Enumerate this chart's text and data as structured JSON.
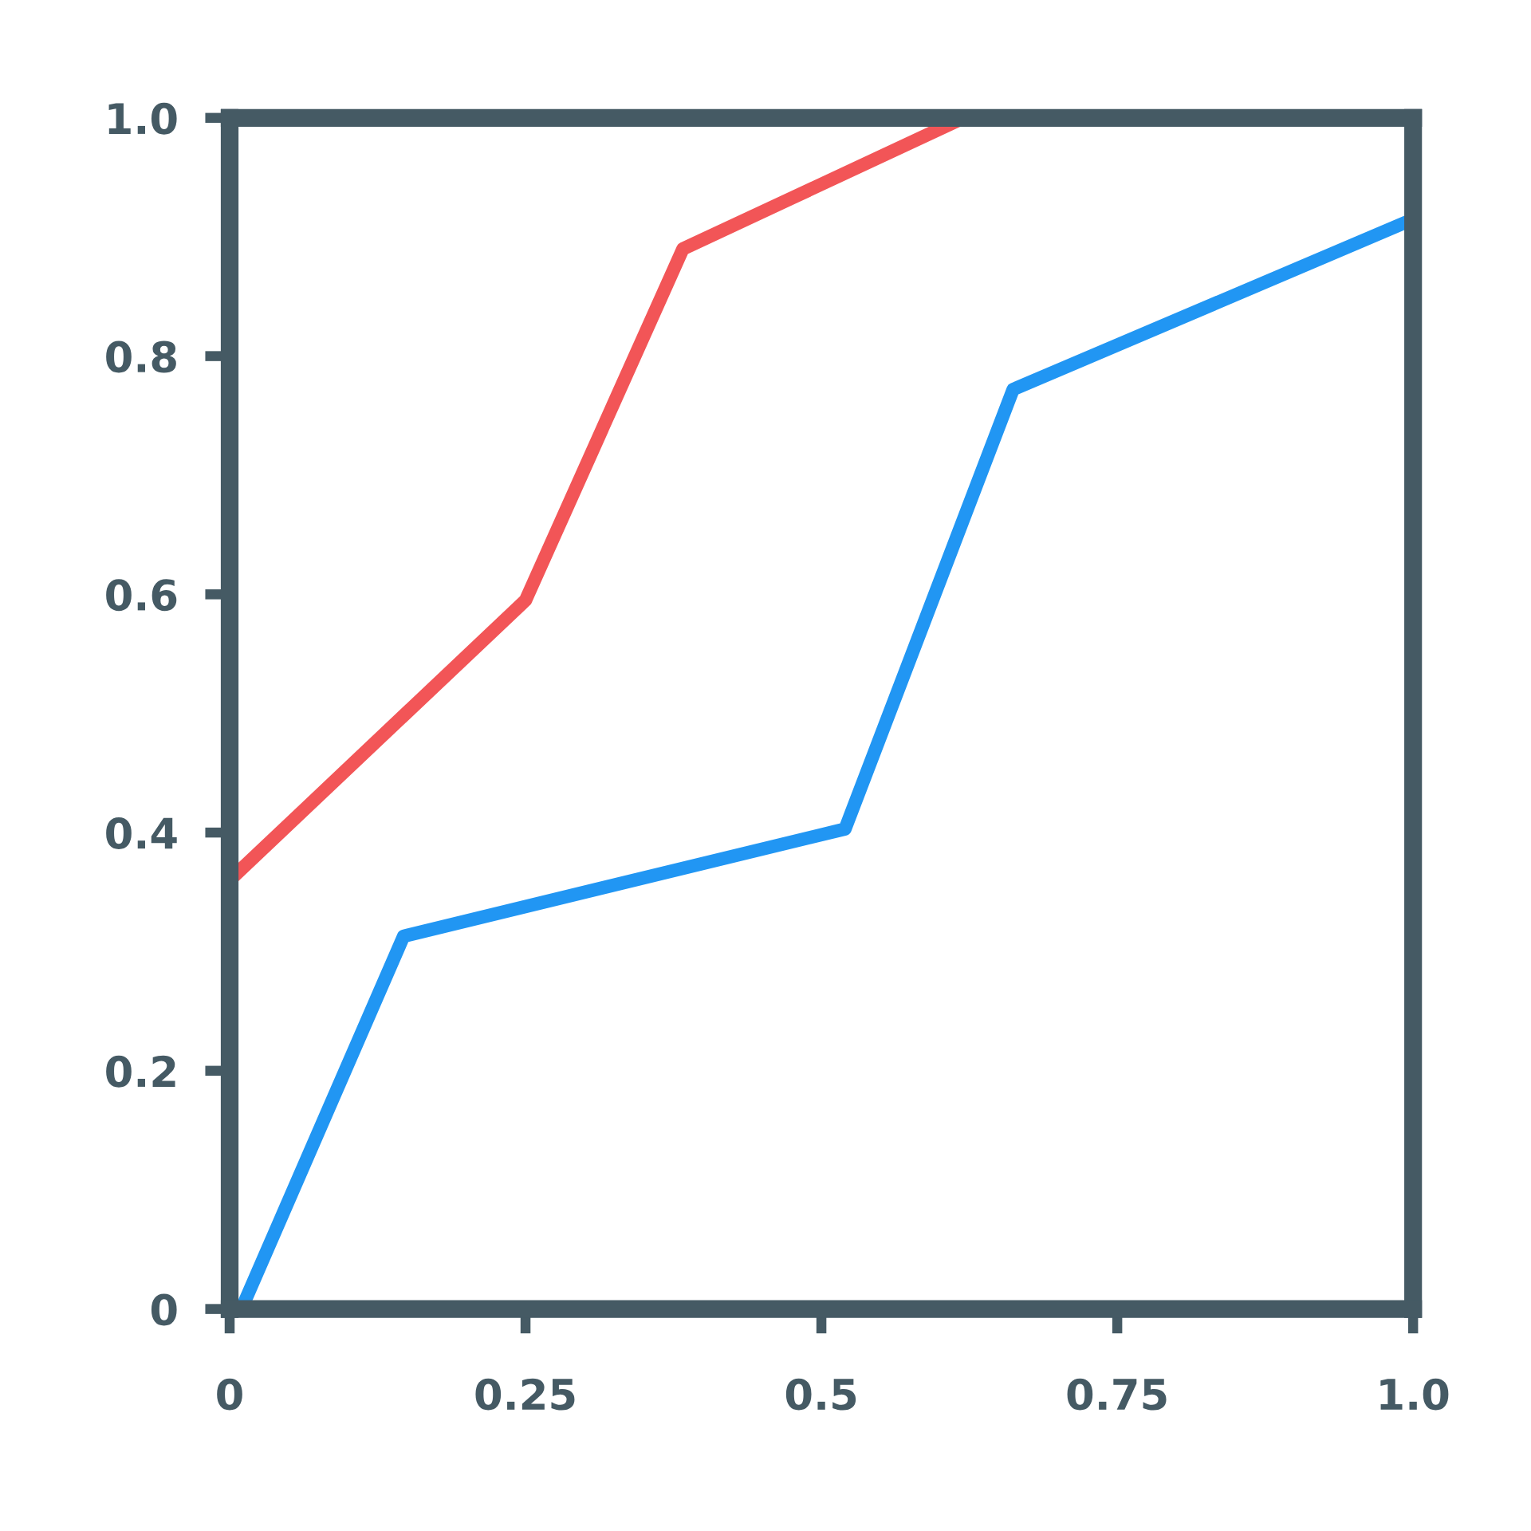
{
  "chart_data": {
    "type": "line",
    "series": [
      {
        "color": "#f25557",
        "x": [
          0,
          0.25,
          0.383,
          0.62
        ],
        "values": [
          0.36,
          0.595,
          0.89,
          1.0
        ]
      },
      {
        "color": "#2196f3",
        "x": [
          0.01,
          0.147,
          0.52,
          0.662,
          1.0
        ],
        "values": [
          0.0,
          0.313,
          0.403,
          0.772,
          0.915
        ]
      }
    ],
    "xlim": [
      0,
      1
    ],
    "ylim": [
      0,
      1
    ],
    "xticks": [
      0,
      0.25,
      0.5,
      0.75,
      {
        "value": 1,
        "label": "1.0"
      }
    ],
    "yticks": [
      0,
      0.2,
      0.4,
      0.6,
      0.8,
      {
        "value": 1,
        "label": "1.0"
      }
    ],
    "grid": false,
    "legend": false,
    "line_style": "solid"
  }
}
